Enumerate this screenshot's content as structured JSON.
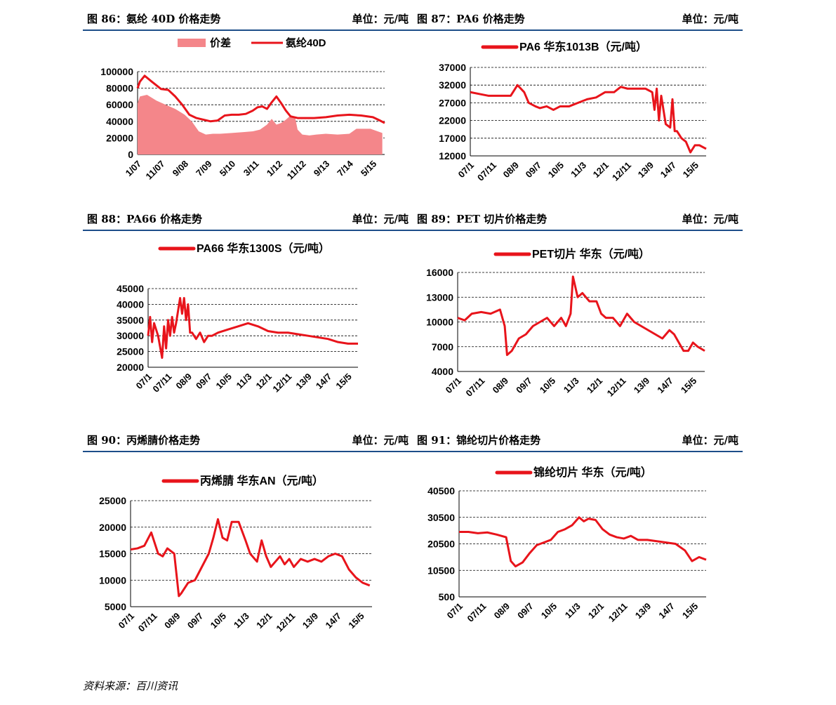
{
  "source": "资料来源：百川资讯",
  "chart_data": [
    {
      "id": "c86",
      "fig": "图 86：氨纶 40D 价格走势",
      "unit": "单位：元/吨",
      "type": "bar+line",
      "legend": [
        "价差",
        "氨纶40D"
      ],
      "legend_style": "horizontal",
      "ylim": [
        0,
        100000
      ],
      "yticks": [
        "100000",
        "80000",
        "60000",
        "40000",
        "20000",
        "0"
      ],
      "xticks": [
        "1/07",
        "11/07",
        "9/08",
        "7/09",
        "5/10",
        "3/11",
        "1/12",
        "11/12",
        "9/13",
        "7/14",
        "5/15"
      ],
      "series": [
        {
          "name": "价差",
          "kind": "area",
          "color": "#f4868a",
          "x": [
            0,
            0.1,
            0.4,
            0.8,
            1.2,
            1.6,
            2.0,
            2.3,
            2.6,
            2.9,
            3.2,
            3.5,
            4.0,
            4.5,
            4.9,
            5.2,
            5.5,
            5.7,
            5.9,
            6.1,
            6.3,
            6.5,
            6.7,
            6.8,
            7.0,
            7.3,
            7.6,
            8.0,
            8.5,
            9.0,
            9.1,
            9.3,
            9.6,
            9.8,
            9.9,
            10.0,
            10.2,
            10.4
          ],
          "y": [
            62000,
            70000,
            72000,
            65000,
            60000,
            55000,
            48000,
            40000,
            28000,
            24000,
            25000,
            25000,
            26000,
            27000,
            28000,
            30000,
            36000,
            43000,
            36000,
            38000,
            42000,
            47000,
            44000,
            30000,
            24000,
            23000,
            24000,
            25000,
            24000,
            25000,
            27000,
            31000,
            31000,
            31000,
            31000,
            30000,
            28000,
            26000
          ]
        },
        {
          "name": "氨纶40D",
          "kind": "line",
          "color": "#e8141b",
          "x": [
            0,
            0.1,
            0.3,
            0.6,
            1.0,
            1.3,
            1.6,
            1.9,
            2.2,
            2.5,
            2.8,
            3.1,
            3.4,
            3.7,
            4.0,
            4.3,
            4.6,
            4.9,
            5.1,
            5.3,
            5.5,
            5.7,
            5.9,
            6.1,
            6.3,
            6.5,
            6.8,
            7.1,
            7.5,
            8.0,
            8.5,
            9.0,
            9.5,
            10.0,
            10.3,
            10.5
          ],
          "y": [
            80000,
            88000,
            95000,
            88000,
            79000,
            78000,
            70000,
            60000,
            48000,
            44000,
            42000,
            40000,
            41000,
            47000,
            48000,
            48000,
            49000,
            53000,
            57000,
            58000,
            55000,
            63000,
            70000,
            62000,
            53000,
            46000,
            44000,
            44000,
            44000,
            45000,
            47000,
            48000,
            47000,
            45000,
            41000,
            38000
          ]
        }
      ]
    },
    {
      "id": "c87",
      "fig": "图 87：PA6 价格走势",
      "unit": "单位：元/吨",
      "type": "line",
      "legend": [
        "PA6 华东1013B（元/吨）"
      ],
      "ylim": [
        12000,
        37000
      ],
      "yticks": [
        "37000",
        "32000",
        "27000",
        "22000",
        "17000",
        "12000"
      ],
      "xticks": [
        "07/1",
        "07/11",
        "08/9",
        "09/7",
        "10/5",
        "11/3",
        "12/1",
        "12/11",
        "13/9",
        "14/7",
        "15/5"
      ],
      "series": [
        {
          "name": "PA6 华东1013B",
          "color": "#e8141b",
          "x": [
            0,
            0.4,
            0.8,
            1.3,
            1.8,
            2.1,
            2.4,
            2.6,
            2.9,
            3.1,
            3.4,
            3.7,
            4.0,
            4.4,
            4.8,
            5.2,
            5.6,
            6.0,
            6.4,
            6.7,
            7.0,
            7.4,
            7.8,
            8.1,
            8.2,
            8.3,
            8.4,
            8.5,
            8.7,
            8.9,
            9.0,
            9.1,
            9.2,
            9.4,
            9.6,
            9.8,
            10.0,
            10.2,
            10.5
          ],
          "y": [
            30000,
            29500,
            29000,
            29000,
            29000,
            32000,
            30000,
            27000,
            26000,
            25500,
            26000,
            25000,
            26000,
            26000,
            27000,
            28000,
            28500,
            30000,
            30000,
            31500,
            31000,
            31000,
            31000,
            30000,
            25000,
            31000,
            22000,
            29000,
            21000,
            20000,
            28000,
            19000,
            19000,
            17000,
            16000,
            13000,
            15000,
            15000,
            14000
          ]
        }
      ]
    },
    {
      "id": "c88",
      "fig": "图 88：PA66 价格走势",
      "unit": "单位：元/吨",
      "type": "line",
      "legend": [
        "PA66 华东1300S（元/吨）"
      ],
      "ylim": [
        20000,
        45000
      ],
      "yticks": [
        "45000",
        "40000",
        "35000",
        "30000",
        "25000",
        "20000"
      ],
      "xticks": [
        "07/1",
        "07/11",
        "08/9",
        "09/7",
        "10/5",
        "11/3",
        "12/1",
        "12/11",
        "13/9",
        "14/7",
        "15/5"
      ],
      "series": [
        {
          "name": "PA66 华东1300S",
          "color": "#e8141b",
          "x": [
            0,
            0.1,
            0.2,
            0.3,
            0.5,
            0.7,
            0.8,
            0.9,
            1.0,
            1.1,
            1.2,
            1.3,
            1.4,
            1.6,
            1.7,
            1.8,
            1.9,
            2.0,
            2.1,
            2.2,
            2.4,
            2.6,
            2.8,
            3.0,
            3.2,
            3.5,
            4.0,
            4.5,
            5.0,
            5.5,
            6.0,
            6.5,
            7.0,
            7.5,
            8.0,
            8.5,
            9.0,
            9.5,
            10.0,
            10.5
          ],
          "y": [
            30000,
            36000,
            28000,
            34000,
            30000,
            23000,
            33000,
            26000,
            35000,
            30000,
            36000,
            31000,
            34000,
            42000,
            37000,
            42000,
            35000,
            40000,
            31000,
            31000,
            29000,
            31000,
            28000,
            30000,
            30000,
            31000,
            32000,
            33000,
            34000,
            33000,
            31500,
            31000,
            31000,
            30500,
            30000,
            29500,
            29000,
            28000,
            27500,
            27500
          ]
        }
      ]
    },
    {
      "id": "c89",
      "fig": "图 89：PET 切片价格走势",
      "unit": "单位：元/吨",
      "type": "line",
      "legend": [
        "PET切片 华东（元/吨）"
      ],
      "ylim": [
        4000,
        16000
      ],
      "yticks": [
        "16000",
        "13000",
        "10000",
        "7000",
        "4000"
      ],
      "xticks": [
        "07/1",
        "07/11",
        "08/9",
        "09/7",
        "10/5",
        "11/3",
        "12/1",
        "12/11",
        "13/9",
        "14/7",
        "15/5"
      ],
      "series": [
        {
          "name": "PET切片 华东",
          "color": "#e8141b",
          "x": [
            0,
            0.3,
            0.6,
            1.0,
            1.4,
            1.8,
            2.0,
            2.1,
            2.3,
            2.6,
            2.9,
            3.2,
            3.5,
            3.8,
            4.1,
            4.4,
            4.6,
            4.8,
            4.9,
            5.1,
            5.3,
            5.6,
            5.9,
            6.1,
            6.3,
            6.6,
            6.9,
            7.2,
            7.5,
            7.8,
            8.1,
            8.4,
            8.7,
            9.0,
            9.2,
            9.4,
            9.6,
            9.8,
            10.0,
            10.2,
            10.5
          ],
          "y": [
            10500,
            10200,
            11000,
            11200,
            11000,
            11500,
            9500,
            6000,
            6500,
            8000,
            8500,
            9500,
            10000,
            10500,
            9500,
            10500,
            9500,
            11000,
            15500,
            13000,
            13500,
            12500,
            12500,
            11000,
            10500,
            10500,
            9500,
            11000,
            10000,
            9500,
            9000,
            8500,
            8000,
            9000,
            8500,
            7500,
            6500,
            6500,
            7500,
            7000,
            6500
          ]
        }
      ]
    },
    {
      "id": "c90",
      "fig": "图 90：丙烯腈价格走势",
      "unit": "单位：元/吨",
      "type": "line",
      "legend": [
        "丙烯腈 华东AN（元/吨）"
      ],
      "ylim": [
        5000,
        25000
      ],
      "yticks": [
        "25000",
        "20000",
        "15000",
        "10000",
        "5000"
      ],
      "xticks": [
        "07/1",
        "07/11",
        "08/9",
        "09/7",
        "10/5",
        "11/3",
        "12/1",
        "12/11",
        "13/9",
        "14/7",
        "15/5"
      ],
      "series": [
        {
          "name": "丙烯腈 华东AN",
          "color": "#e8141b",
          "x": [
            0,
            0.3,
            0.6,
            0.9,
            1.2,
            1.4,
            1.6,
            1.9,
            2.1,
            2.2,
            2.5,
            2.8,
            3.1,
            3.4,
            3.6,
            3.8,
            4.0,
            4.2,
            4.4,
            4.7,
            5.0,
            5.2,
            5.5,
            5.7,
            5.9,
            6.1,
            6.3,
            6.5,
            6.7,
            6.9,
            7.1,
            7.4,
            7.7,
            8.0,
            8.3,
            8.6,
            8.9,
            9.2,
            9.5,
            9.8,
            10.1,
            10.4
          ],
          "y": [
            15800,
            16000,
            16500,
            19000,
            15000,
            14500,
            16000,
            15000,
            7000,
            7500,
            9500,
            10000,
            12500,
            15000,
            18000,
            21500,
            18000,
            17500,
            21000,
            21000,
            17500,
            15000,
            13500,
            17500,
            14500,
            12500,
            13500,
            14500,
            13000,
            14000,
            12500,
            14000,
            13500,
            14000,
            13500,
            14500,
            15000,
            14500,
            12000,
            10500,
            9500,
            9000
          ]
        }
      ]
    },
    {
      "id": "c91",
      "fig": "图 91：锦纶切片价格走势",
      "unit": "单位：元/吨",
      "type": "line",
      "legend": [
        "锦纶切片 华东（元/吨）"
      ],
      "ylim": [
        500,
        40500
      ],
      "yticks": [
        "40500",
        "30500",
        "20500",
        "10500",
        "500"
      ],
      "xticks": [
        "07/1",
        "07/11",
        "08/9",
        "09/7",
        "10/5",
        "11/3",
        "12/1",
        "12/11",
        "13/9",
        "14/7",
        "15/5"
      ],
      "series": [
        {
          "name": "锦纶切片 华东",
          "color": "#e8141b",
          "x": [
            0,
            0.4,
            0.8,
            1.2,
            1.6,
            2.0,
            2.2,
            2.4,
            2.7,
            3.0,
            3.3,
            3.6,
            3.9,
            4.2,
            4.5,
            4.8,
            5.1,
            5.3,
            5.5,
            5.8,
            6.1,
            6.4,
            6.7,
            7.0,
            7.3,
            7.6,
            8.0,
            8.4,
            8.8,
            9.2,
            9.6,
            9.9,
            10.2,
            10.5
          ],
          "y": [
            25000,
            25000,
            24500,
            24800,
            24000,
            23000,
            14000,
            12000,
            13500,
            17000,
            20000,
            21000,
            22000,
            25000,
            26000,
            27500,
            30500,
            29000,
            30000,
            29500,
            26000,
            24000,
            23000,
            22500,
            23500,
            22000,
            22000,
            21500,
            21000,
            20500,
            18000,
            14000,
            15500,
            14500
          ]
        }
      ]
    }
  ]
}
